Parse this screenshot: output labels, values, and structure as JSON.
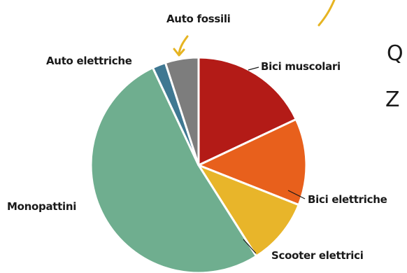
{
  "chart_data": {
    "type": "pie",
    "title": "",
    "labels": [
      "Bici muscolari",
      "Bici elettriche",
      "Scooter elettrici",
      "Monopattini",
      "Auto elettriche",
      "Auto fossili"
    ],
    "values": [
      18,
      13,
      10,
      52,
      2,
      5
    ],
    "colors": [
      "#b31b17",
      "#e8601c",
      "#e8b52a",
      "#6fae8f",
      "#3f7892",
      "#7d7d7d"
    ],
    "start_angle_deg": 0,
    "direction": "clockwise",
    "label_names": [
      "label-bici-muscolari",
      "label-bici-elettriche",
      "label-scooter-elettrici",
      "label-monopattini",
      "label-auto-elettriche",
      "label-auto-fossili"
    ]
  },
  "cut_off_text": [
    "Q",
    "Z"
  ],
  "accent_color": "#e6b422",
  "leader_color": "#1a1a1a"
}
